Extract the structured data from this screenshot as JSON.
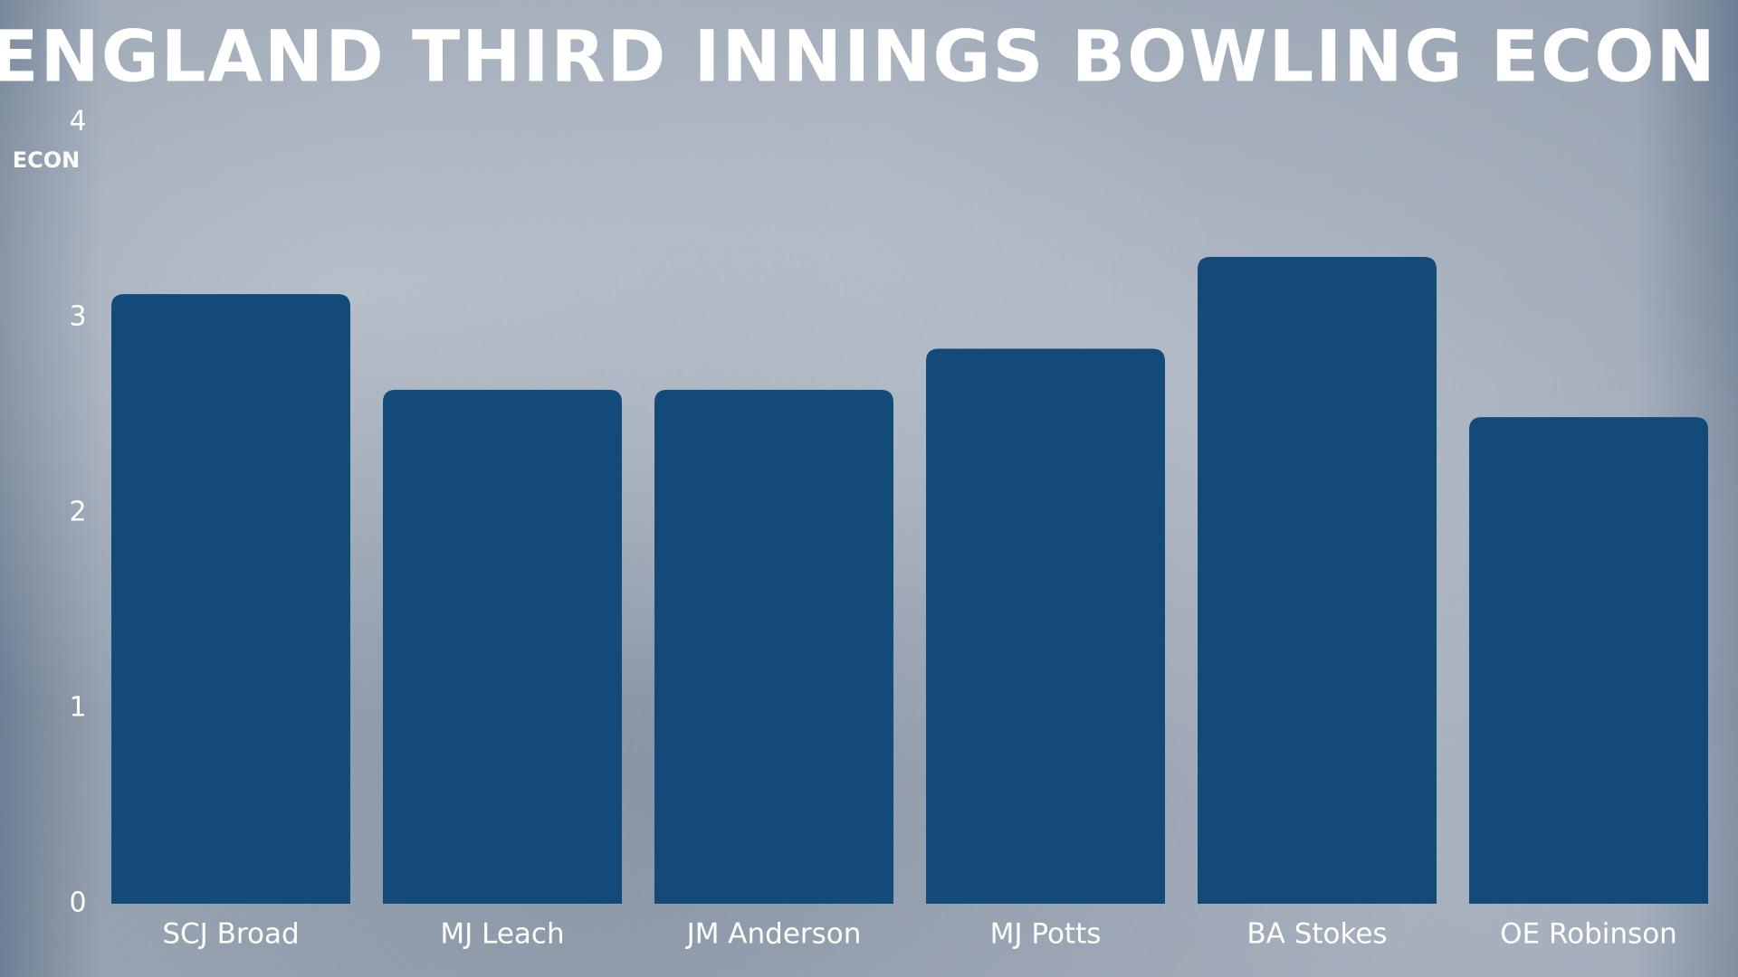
{
  "chart_data": {
    "type": "bar",
    "title": "ENGLAND THIRD INNINGS BOWLING ECON",
    "y_label": "ECON",
    "categories": [
      "SCJ Broad",
      "MJ Leach",
      "JM Anderson",
      "MJ Potts",
      "BA Stokes",
      "OE Robinson"
    ],
    "values": [
      3.12,
      2.63,
      2.63,
      2.84,
      3.31,
      2.49
    ],
    "color": "#124a79",
    "ylim": [
      0,
      4
    ],
    "yticks": [
      0,
      1,
      2,
      3,
      4
    ],
    "grid": false
  }
}
